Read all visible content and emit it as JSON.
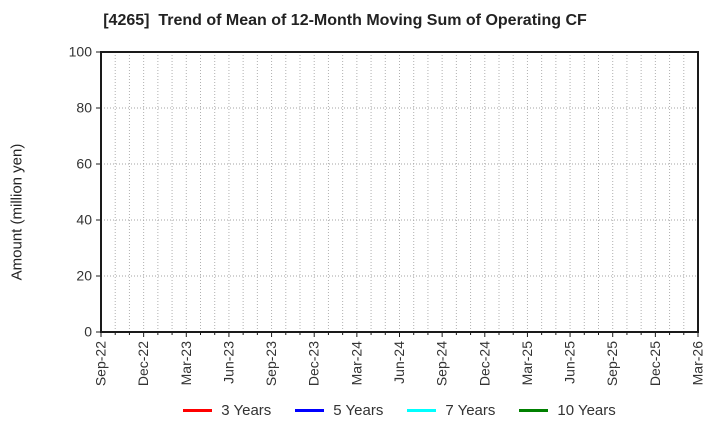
{
  "title": "[4265]  Trend of Mean of 12-Month Moving Sum of Operating CF",
  "chart_data": {
    "type": "line",
    "title": "[4265]  Trend of Mean of 12-Month Moving Sum of Operating CF",
    "xlabel": "",
    "ylabel": "Amount (million yen)",
    "ylim": [
      0,
      100
    ],
    "y_ticks": [
      0,
      20,
      40,
      60,
      80,
      100
    ],
    "x_tick_labels": [
      "Sep-22",
      "Dec-22",
      "Mar-23",
      "Jun-23",
      "Sep-23",
      "Dec-23",
      "Mar-24",
      "Jun-24",
      "Sep-24",
      "Dec-24",
      "Mar-25",
      "Jun-25",
      "Sep-25",
      "Dec-25",
      "Mar-26"
    ],
    "months_total": 42,
    "months_per_major_tick": 3,
    "grid": true,
    "grid_color": "#b0b0b0",
    "axis_color": "#1a1a1a",
    "legend_position": "bottom",
    "series": [
      {
        "name": "3 Years",
        "color": "#ff0000",
        "values": []
      },
      {
        "name": "5 Years",
        "color": "#0000ff",
        "values": []
      },
      {
        "name": "7 Years",
        "color": "#00ffff",
        "values": []
      },
      {
        "name": "10 Years",
        "color": "#008000",
        "values": []
      }
    ]
  }
}
